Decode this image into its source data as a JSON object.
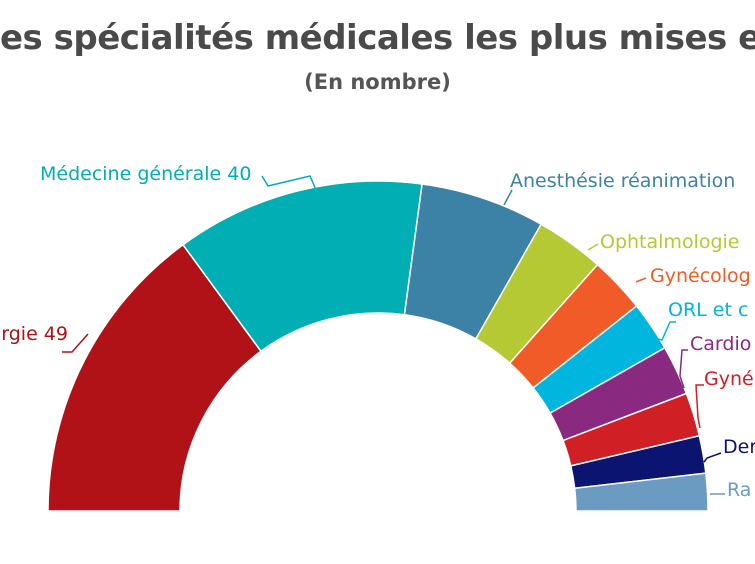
{
  "chart_data": {
    "type": "pie",
    "variant": "half-donut",
    "title": "es spécialités médicales les plus mises e",
    "subtitle": "(En nombre)",
    "label_style": "outside with leader lines",
    "slices": [
      {
        "label": "rgie 49",
        "value": 49,
        "color": "#b01218"
      },
      {
        "label": "Médecine générale 40",
        "value": 40,
        "color": "#00aeb4"
      },
      {
        "label": "Anesthésie réanimation",
        "value": 20,
        "color": "#3b82a6"
      },
      {
        "label": "Ophtalmologie",
        "value": 11,
        "color": "#b5c935"
      },
      {
        "label": "Gynécolog",
        "value": 9,
        "color": "#f05b27"
      },
      {
        "label": "ORL et c",
        "value": 8,
        "color": "#00b5de"
      },
      {
        "label": "Cardio",
        "value": 8,
        "color": "#892a80"
      },
      {
        "label": "Gyné",
        "value": 7,
        "color": "#d01f25"
      },
      {
        "label": "Der",
        "value": 6,
        "color": "#0c1472"
      },
      {
        "label": "Ra",
        "value": 6,
        "color": "#6b9bc0"
      }
    ]
  }
}
